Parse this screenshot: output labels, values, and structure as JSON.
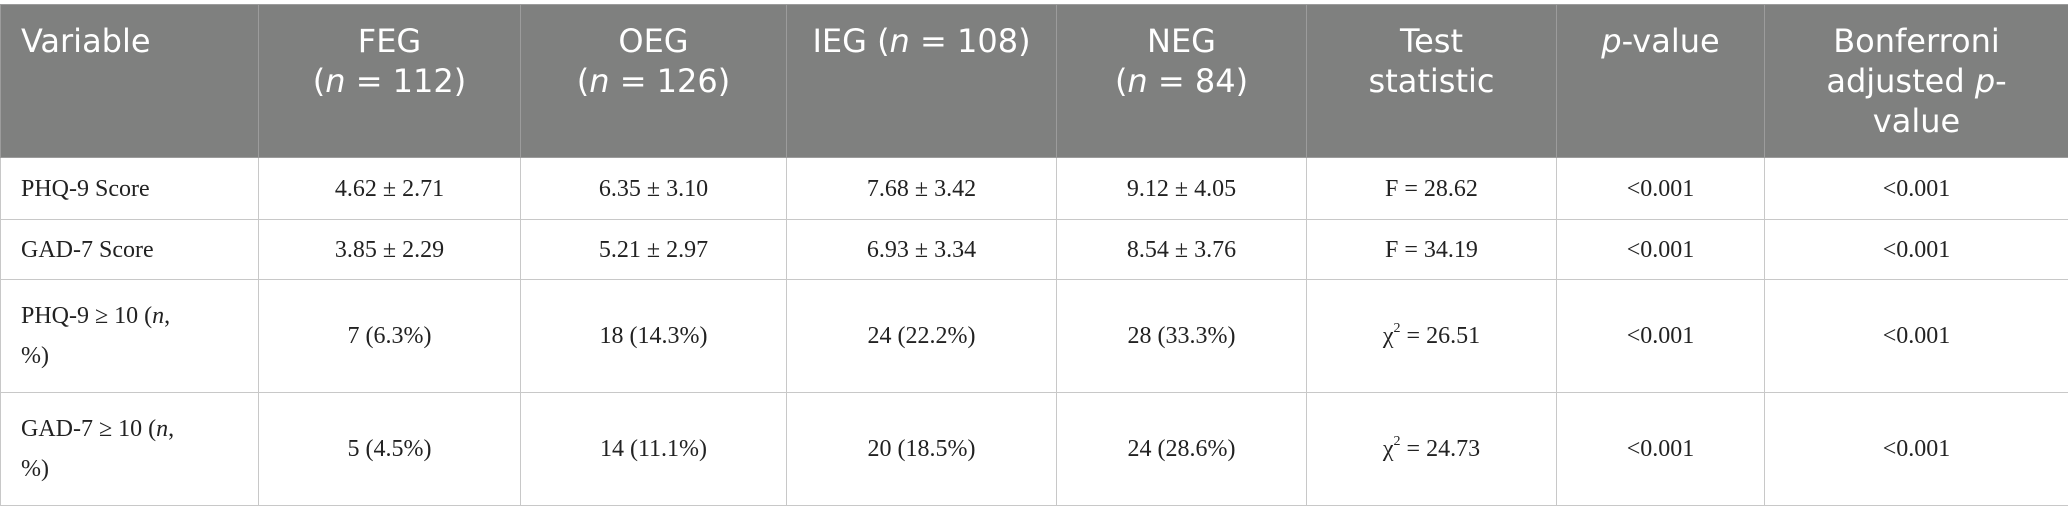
{
  "table": {
    "headers": {
      "variable": "Variable",
      "feg": {
        "name": "FEG",
        "n_prefix": "(",
        "n_var": "n",
        "n_suffix": " = 112)"
      },
      "oeg": {
        "name": "OEG",
        "n_prefix": "(",
        "n_var": "n",
        "n_suffix": " = 126)"
      },
      "ieg": {
        "name": "IEG (",
        "n_var": "n",
        "n_suffix": " = 108)"
      },
      "neg": {
        "name": "NEG",
        "n_prefix": "(",
        "n_var": "n",
        "n_suffix": " = 84)"
      },
      "test": {
        "line1": "Test",
        "line2": "statistic"
      },
      "pvalue": {
        "p": "p",
        "rest": "-value"
      },
      "bonf": {
        "line1": "Bonferroni",
        "line2_pre": "adjusted ",
        "p": "p",
        "line2_post": "-",
        "line3": "value"
      }
    },
    "rows": [
      {
        "variable": "PHQ-9 Score",
        "feg": "4.62 ± 2.71",
        "oeg": "6.35 ± 3.10",
        "ieg": "7.68 ± 3.42",
        "neg": "9.12 ± 4.05",
        "test_pre": "F = 28.62",
        "pvalue": "<0.001",
        "bonf": "<0.001"
      },
      {
        "variable": "GAD-7 Score",
        "feg": "3.85 ± 2.29",
        "oeg": "5.21 ± 2.97",
        "ieg": "6.93 ± 3.34",
        "neg": "8.54 ± 3.76",
        "test_pre": "F = 34.19",
        "pvalue": "<0.001",
        "bonf": "<0.001"
      },
      {
        "variable_pre": "PHQ-9 ≥ 10 (",
        "variable_n": "n",
        "variable_post": ",",
        "variable_line2": "%)",
        "feg": "7 (6.3%)",
        "oeg": "18 (14.3%)",
        "ieg": "24 (22.2%)",
        "neg": "28 (33.3%)",
        "test_sym": "χ",
        "test_sup": "2",
        "test_val": " = 26.51",
        "pvalue": "<0.001",
        "bonf": "<0.001"
      },
      {
        "variable_pre": "GAD-7 ≥ 10 (",
        "variable_n": "n",
        "variable_post": ",",
        "variable_line2": "%)",
        "feg": "5 (4.5%)",
        "oeg": "14 (11.1%)",
        "ieg": "20 (18.5%)",
        "neg": "24 (28.6%)",
        "test_sym": "χ",
        "test_sup": "2",
        "test_val": " = 24.73",
        "pvalue": "<0.001",
        "bonf": "<0.001"
      }
    ]
  },
  "colors": {
    "header_bg": "#7f807f",
    "header_text": "#ffffff",
    "border": "#c8c8c8",
    "body_text": "#222222"
  }
}
